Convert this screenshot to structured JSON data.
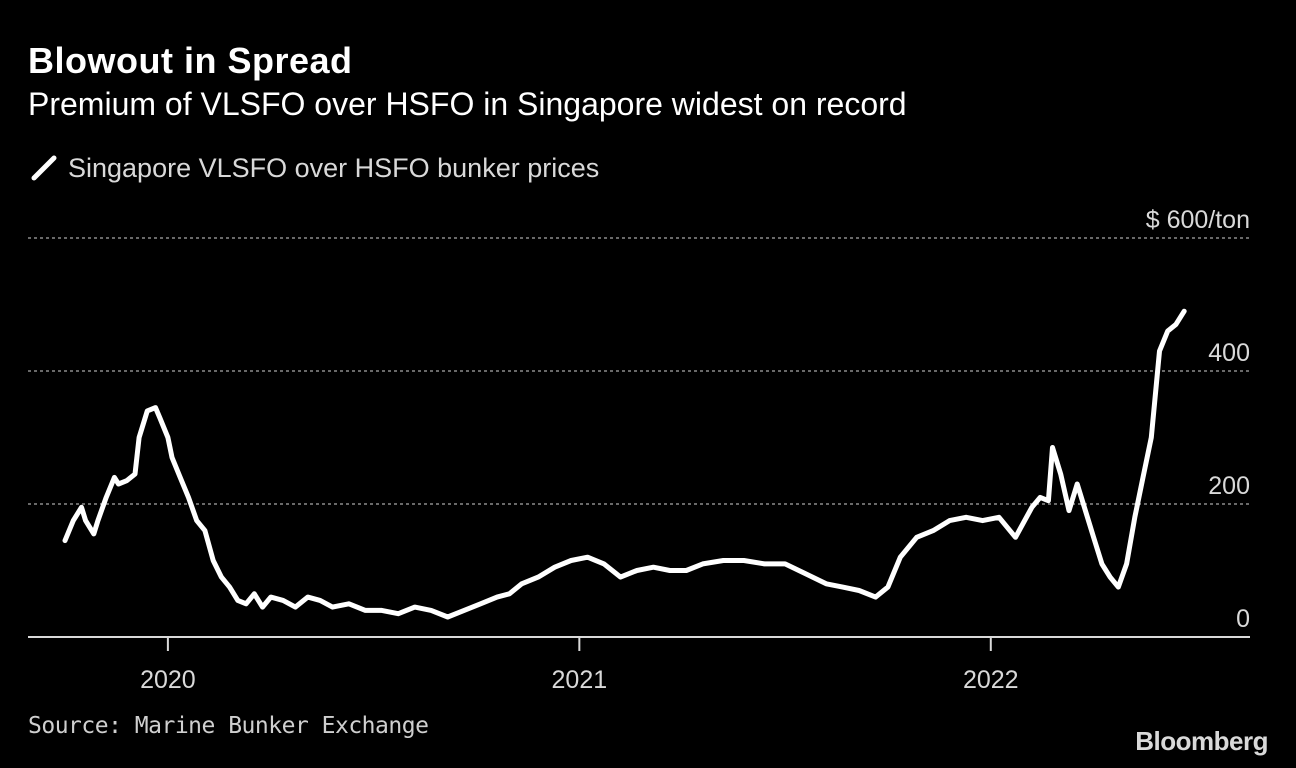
{
  "title": "Blowout in Spread",
  "subtitle": "Premium of VLSFO over HSFO in Singapore widest on record",
  "source": "Source: Marine Bunker Exchange",
  "logo": "Bloomberg",
  "colors": {
    "background": "#000000",
    "line": "#ffffff",
    "grid": "#8c8c8c",
    "text": "#d9d9d9"
  },
  "chart_data": {
    "type": "line",
    "title": "Blowout in Spread",
    "subtitle": "Premium of VLSFO over HSFO in Singapore widest on record",
    "xlabel": "",
    "ylabel": "$600/ton",
    "ylim": [
      0,
      600
    ],
    "xlim": [
      2019.66,
      2022.63
    ],
    "grid": true,
    "legend": "top-left",
    "y_ticks": [
      {
        "value": 600,
        "label": "$ 600/ton"
      },
      {
        "value": 400,
        "label": "400"
      },
      {
        "value": 200,
        "label": "200"
      },
      {
        "value": 0,
        "label": "0"
      }
    ],
    "x_ticks": [
      {
        "value": 2020.0,
        "label": "2020"
      },
      {
        "value": 2021.0,
        "label": "2021"
      },
      {
        "value": 2022.0,
        "label": "2022"
      }
    ],
    "series": [
      {
        "name": "Singapore VLSFO over HSFO bunker prices",
        "x": [
          2019.75,
          2019.77,
          2019.79,
          2019.8,
          2019.82,
          2019.83,
          2019.85,
          2019.87,
          2019.88,
          2019.9,
          2019.92,
          2019.93,
          2019.95,
          2019.97,
          2019.98,
          2020.0,
          2020.01,
          2020.03,
          2020.05,
          2020.07,
          2020.09,
          2020.11,
          2020.13,
          2020.15,
          2020.17,
          2020.19,
          2020.21,
          2020.23,
          2020.25,
          2020.28,
          2020.31,
          2020.34,
          2020.37,
          2020.4,
          2020.44,
          2020.48,
          2020.52,
          2020.56,
          2020.6,
          2020.64,
          2020.68,
          2020.72,
          2020.76,
          2020.8,
          2020.83,
          2020.86,
          2020.9,
          2020.94,
          2020.98,
          2021.02,
          2021.06,
          2021.1,
          2021.14,
          2021.18,
          2021.22,
          2021.26,
          2021.3,
          2021.35,
          2021.4,
          2021.45,
          2021.5,
          2021.55,
          2021.6,
          2021.64,
          2021.68,
          2021.72,
          2021.75,
          2021.78,
          2021.82,
          2021.86,
          2021.9,
          2021.94,
          2021.98,
          2022.02,
          2022.06,
          2022.1,
          2022.12,
          2022.14,
          2022.15,
          2022.17,
          2022.19,
          2022.21,
          2022.23,
          2022.25,
          2022.27,
          2022.29,
          2022.31,
          2022.33,
          2022.35,
          2022.37,
          2022.39,
          2022.41,
          2022.43,
          2022.45,
          2022.47
        ],
        "values": [
          145,
          175,
          195,
          175,
          155,
          175,
          210,
          240,
          230,
          235,
          245,
          300,
          340,
          345,
          330,
          300,
          270,
          240,
          210,
          175,
          160,
          115,
          90,
          75,
          55,
          50,
          65,
          45,
          60,
          55,
          45,
          60,
          55,
          45,
          50,
          40,
          40,
          35,
          45,
          40,
          30,
          40,
          50,
          60,
          65,
          80,
          90,
          105,
          115,
          120,
          110,
          90,
          100,
          105,
          100,
          100,
          110,
          115,
          115,
          110,
          110,
          95,
          80,
          75,
          70,
          60,
          75,
          120,
          150,
          160,
          175,
          180,
          175,
          180,
          150,
          195,
          210,
          205,
          285,
          245,
          190,
          230,
          190,
          150,
          110,
          90,
          75,
          110,
          180,
          240,
          300,
          430,
          460,
          470,
          490
        ]
      }
    ]
  }
}
